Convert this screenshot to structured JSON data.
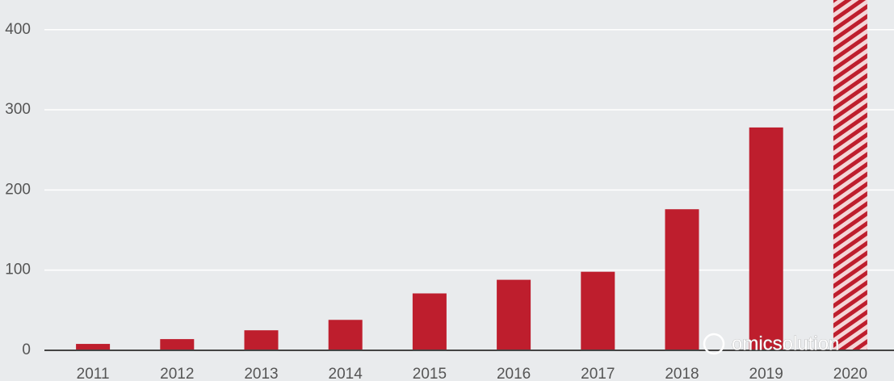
{
  "chart_data": {
    "type": "bar",
    "categories": [
      "2011",
      "2012",
      "2013",
      "2014",
      "2015",
      "2016",
      "2017",
      "2018",
      "2019",
      "2020"
    ],
    "values": [
      8,
      14,
      25,
      38,
      71,
      88,
      98,
      176,
      278,
      437
    ],
    "hatched": [
      false,
      false,
      false,
      false,
      false,
      false,
      false,
      false,
      false,
      true
    ],
    "color": "#be1e2d",
    "ylim": [
      0,
      437
    ],
    "yticks": [
      0,
      100,
      200,
      300,
      400
    ],
    "grid": true,
    "annotation": "omicsolution"
  }
}
